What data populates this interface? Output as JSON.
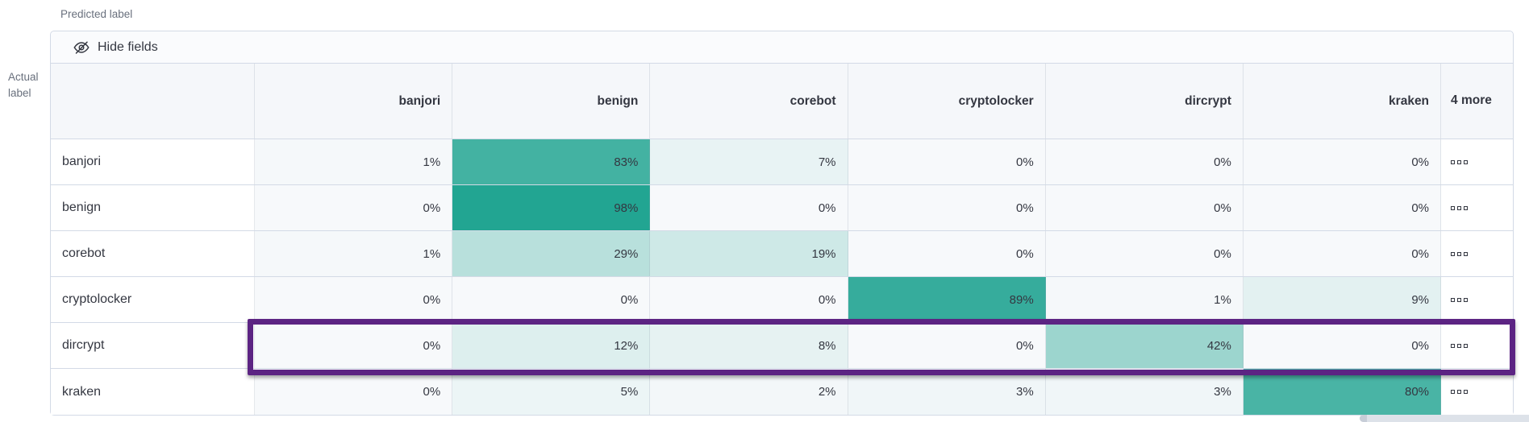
{
  "axes": {
    "predicted_label": "Predicted label",
    "actual_label": "Actual label"
  },
  "toolbar": {
    "hide_fields_label": "Hide fields",
    "icon": "eye-closed-icon"
  },
  "grid": {
    "columns": [
      "banjori",
      "benign",
      "corebot",
      "cryptolocker",
      "dircrypt",
      "kraken"
    ],
    "more_column_label": "4 more",
    "row_actions_icon": "boxes-horizontal-icon",
    "value_suffix": "%",
    "rows": [
      {
        "label": "banjori",
        "values": [
          1,
          83,
          7,
          0,
          0,
          0
        ],
        "highlighted": false
      },
      {
        "label": "benign",
        "values": [
          0,
          98,
          0,
          0,
          0,
          0
        ],
        "highlighted": false
      },
      {
        "label": "corebot",
        "values": [
          1,
          29,
          19,
          0,
          0,
          0
        ],
        "highlighted": false
      },
      {
        "label": "cryptolocker",
        "values": [
          0,
          0,
          0,
          89,
          1,
          9
        ],
        "highlighted": false
      },
      {
        "label": "dircrypt",
        "values": [
          0,
          12,
          8,
          0,
          42,
          0
        ],
        "highlighted": true
      },
      {
        "label": "kraken",
        "values": [
          0,
          5,
          2,
          3,
          3,
          80
        ],
        "highlighted": false
      }
    ]
  },
  "colors": {
    "heat_zero": "#F7F9FB",
    "heat_full": "#1EA390",
    "highlight": "#5C2483",
    "border": "#D3DAE6",
    "header_bg": "#F5F7FA",
    "text": "#343741",
    "muted_text": "#69707D"
  },
  "chart_data": {
    "type": "heatmap",
    "xlabel": "Predicted label",
    "ylabel": "Actual label",
    "x_categories": [
      "banjori",
      "benign",
      "corebot",
      "cryptolocker",
      "dircrypt",
      "kraken"
    ],
    "y_categories": [
      "banjori",
      "benign",
      "corebot",
      "cryptolocker",
      "dircrypt",
      "kraken"
    ],
    "unit": "%",
    "values": [
      [
        1,
        83,
        7,
        0,
        0,
        0
      ],
      [
        0,
        98,
        0,
        0,
        0,
        0
      ],
      [
        1,
        29,
        19,
        0,
        0,
        0
      ],
      [
        0,
        0,
        0,
        89,
        1,
        9
      ],
      [
        0,
        12,
        8,
        0,
        42,
        0
      ],
      [
        0,
        5,
        2,
        3,
        3,
        80
      ]
    ],
    "legend": "off",
    "annotation": "purple rectangle highlighting the dircrypt row data cells"
  }
}
